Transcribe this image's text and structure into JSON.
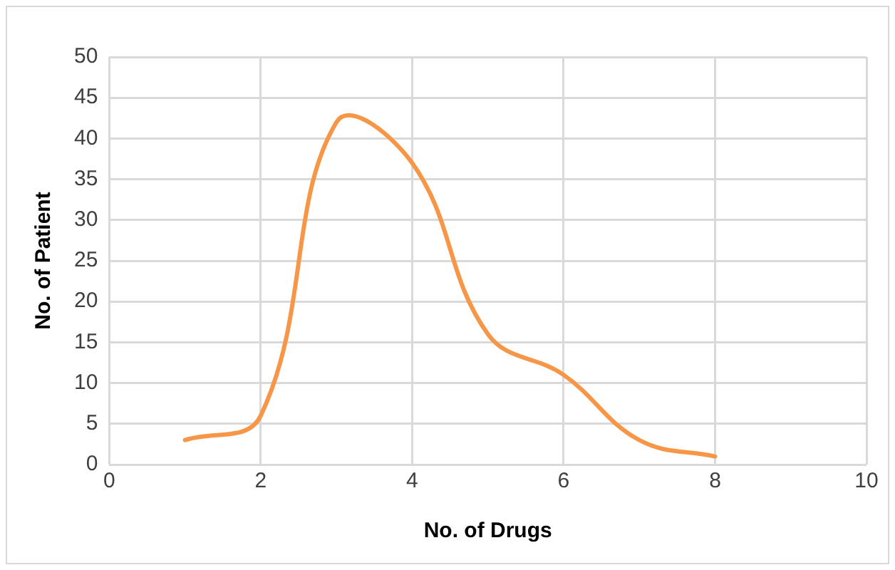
{
  "chart_data": {
    "type": "line",
    "xlabel": "No. of Drugs",
    "ylabel": "No. of Patient",
    "x": [
      1,
      2,
      3,
      4,
      5,
      6,
      7,
      8
    ],
    "series": [
      {
        "color": "#f79646",
        "values": [
          3,
          6,
          42,
          37,
          16,
          11,
          3,
          1
        ]
      }
    ],
    "xlim": [
      0,
      10
    ],
    "xticks": [
      0,
      2,
      4,
      6,
      8,
      10
    ],
    "ylim": [
      0,
      50
    ],
    "yticks": [
      0,
      5,
      10,
      15,
      20,
      25,
      30,
      35,
      40,
      45,
      50
    ],
    "grid": true,
    "legend": false,
    "marker": "none",
    "line_style": "solid"
  }
}
